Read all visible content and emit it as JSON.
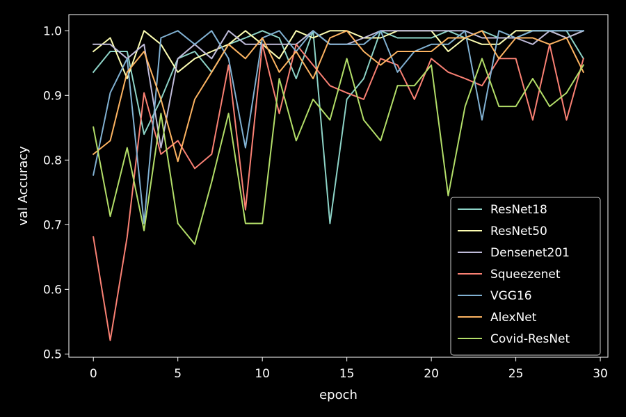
{
  "chart_data": {
    "type": "line",
    "title": "",
    "xlabel": "epoch",
    "ylabel": "val Accuracy",
    "xlim": [
      -1.45,
      30.45
    ],
    "ylim": [
      0.495,
      1.025
    ],
    "xticks": [
      0,
      5,
      10,
      15,
      20,
      25,
      30
    ],
    "yticks": [
      0.5,
      0.6,
      0.7,
      0.8,
      0.9,
      1.0
    ],
    "ytick_labels": [
      "0.5",
      "0.6",
      "0.7",
      "0.8",
      "0.9",
      "1.0"
    ],
    "grid": false,
    "legend_position": "lower-right",
    "background": "#000000",
    "foreground": "#ffffff",
    "x": [
      0,
      1,
      2,
      3,
      4,
      5,
      6,
      7,
      8,
      9,
      10,
      11,
      12,
      13,
      14,
      15,
      16,
      17,
      18,
      19,
      20,
      21,
      22,
      23,
      24,
      25,
      26,
      27,
      28,
      29
    ],
    "series": [
      {
        "name": "ResNet18",
        "color": "#8dd3c7",
        "values": [
          0.936,
          0.968,
          0.968,
          0.84,
          0.894,
          0.957,
          0.968,
          0.936,
          0.979,
          0.989,
          1.0,
          0.989,
          0.926,
          1.0,
          0.702,
          0.894,
          0.926,
          1.0,
          0.989,
          0.989,
          0.989,
          1.0,
          0.989,
          1.0,
          0.989,
          0.989,
          1.0,
          1.0,
          1.0,
          0.957
        ]
      },
      {
        "name": "ResNet50",
        "color": "#feffb3",
        "values": [
          0.968,
          0.989,
          0.926,
          1.0,
          0.979,
          0.936,
          0.957,
          0.968,
          0.979,
          1.0,
          0.979,
          0.957,
          1.0,
          0.989,
          1.0,
          1.0,
          0.989,
          0.989,
          1.0,
          1.0,
          1.0,
          0.968,
          0.989,
          0.979,
          0.979,
          1.0,
          1.0,
          1.0,
          0.989,
          1.0
        ]
      },
      {
        "name": "Densenet201",
        "color": "#bfbbd9",
        "values": [
          0.979,
          0.979,
          0.957,
          0.979,
          0.819,
          0.957,
          0.979,
          0.957,
          1.0,
          0.979,
          0.979,
          0.979,
          0.979,
          1.0,
          0.979,
          0.979,
          0.989,
          1.0,
          1.0,
          1.0,
          1.0,
          1.0,
          1.0,
          0.989,
          0.989,
          0.989,
          0.979,
          1.0,
          0.989,
          1.0
        ]
      },
      {
        "name": "Squeezenet",
        "color": "#fa8174",
        "values": [
          0.681,
          0.521,
          0.681,
          0.904,
          0.809,
          0.83,
          0.787,
          0.809,
          0.947,
          0.723,
          0.979,
          0.872,
          0.979,
          0.947,
          0.915,
          0.904,
          0.894,
          0.957,
          0.947,
          0.894,
          0.957,
          0.936,
          0.926,
          0.915,
          0.957,
          0.957,
          0.862,
          0.979,
          0.862,
          0.957
        ]
      },
      {
        "name": "VGG16",
        "color": "#81b1d2",
        "values": [
          0.777,
          0.904,
          0.957,
          0.702,
          0.989,
          1.0,
          0.979,
          1.0,
          0.957,
          0.819,
          0.989,
          1.0,
          0.968,
          1.0,
          0.979,
          0.979,
          0.979,
          1.0,
          0.936,
          0.968,
          0.979,
          0.979,
          1.0,
          0.862,
          1.0,
          0.989,
          1.0,
          1.0,
          1.0,
          1.0
        ]
      },
      {
        "name": "AlexNet",
        "color": "#fdb462",
        "values": [
          0.809,
          0.83,
          0.936,
          0.968,
          0.894,
          0.798,
          0.894,
          0.936,
          0.979,
          0.957,
          0.989,
          0.936,
          0.968,
          0.926,
          0.989,
          1.0,
          0.968,
          0.947,
          0.968,
          0.968,
          0.968,
          0.989,
          0.989,
          1.0,
          0.957,
          0.989,
          0.989,
          0.979,
          0.989,
          0.936
        ]
      },
      {
        "name": "Covid-ResNet",
        "color": "#b3de69",
        "values": [
          0.851,
          0.713,
          0.819,
          0.691,
          0.872,
          0.702,
          0.67,
          0.766,
          0.872,
          0.702,
          0.702,
          0.926,
          0.83,
          0.894,
          0.862,
          0.957,
          0.862,
          0.83,
          0.915,
          0.915,
          0.947,
          0.745,
          0.883,
          0.957,
          0.883,
          0.883,
          0.926,
          0.883,
          0.904,
          0.947
        ]
      }
    ]
  }
}
